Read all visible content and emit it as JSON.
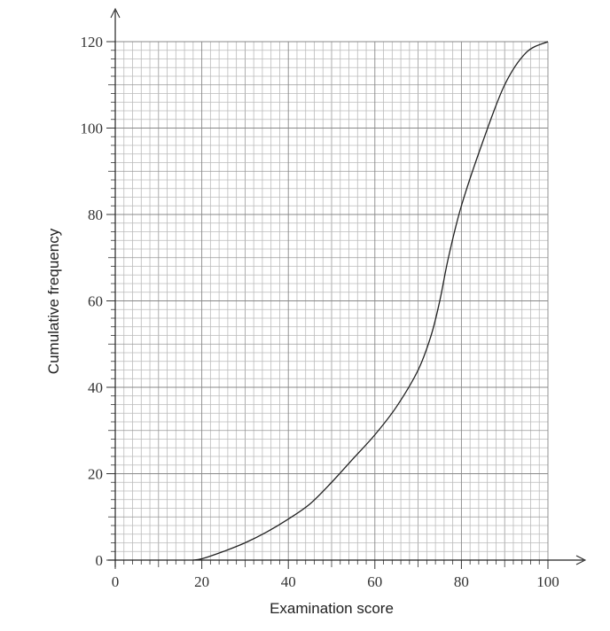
{
  "chart_data": {
    "type": "line",
    "x_label": "Examination score",
    "y_label": "Cumulative frequency",
    "x": [
      18,
      20,
      25,
      30,
      35,
      40,
      45,
      50,
      55,
      60,
      65,
      70,
      73,
      75,
      77,
      80,
      85,
      90,
      95,
      100
    ],
    "values": [
      0,
      0.3,
      2,
      4,
      6.5,
      9.5,
      13,
      18,
      23.5,
      29,
      35.5,
      44,
      52,
      60,
      70,
      82,
      97,
      110,
      117.5,
      120
    ],
    "color": "#222",
    "xlim": [
      0,
      100
    ],
    "ylim": [
      0,
      120
    ],
    "xticks": [
      0,
      20,
      40,
      60,
      80,
      100
    ],
    "yticks": [
      0,
      20,
      40,
      60,
      80,
      100,
      120
    ],
    "grid": true
  }
}
